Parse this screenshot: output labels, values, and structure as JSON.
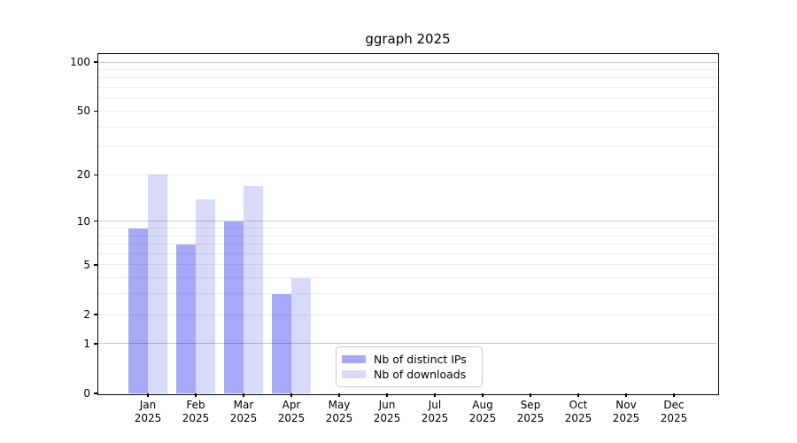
{
  "window": {
    "background": "#ffffff",
    "text_color": "#000000",
    "axis_color": "#000000",
    "grid_major_color": "#c8c8c8",
    "grid_minor_color": "#ededed",
    "legend_border_color": "#cccccc"
  },
  "chart_data": {
    "type": "bar",
    "title": "ggraph 2025",
    "categories": [
      "Jan",
      "Feb",
      "Mar",
      "Apr",
      "May",
      "Jun",
      "Jul",
      "Aug",
      "Sep",
      "Oct",
      "Nov",
      "Dec"
    ],
    "category_year": "2025",
    "xlabel": "",
    "ylabel": "",
    "yscale": "log1p",
    "ylim": [
      0,
      112
    ],
    "yticks": [
      0,
      1,
      2,
      5,
      10,
      20,
      50,
      100
    ],
    "grid": true,
    "grid_major": [
      1,
      10,
      100
    ],
    "grid_minor": [
      2,
      3,
      4,
      5,
      6,
      7,
      8,
      9,
      20,
      30,
      40,
      50,
      60,
      70,
      80,
      90
    ],
    "legend_position": "inside bottom-center",
    "series": [
      {
        "name": "Nb of distinct IPs",
        "color": "#a8a8f8",
        "fill_rgba": "rgba(0,0,234,0.34)",
        "values": [
          9,
          7,
          10,
          3,
          0,
          0,
          0,
          0,
          0,
          0,
          0,
          0
        ]
      },
      {
        "name": "Nb of downloads",
        "color": "#d9d9fa",
        "fill_rgba": "rgba(0,0,221,0.15)",
        "values": [
          20,
          14,
          17,
          4,
          0,
          0,
          0,
          0,
          0,
          0,
          0,
          0
        ]
      }
    ]
  }
}
